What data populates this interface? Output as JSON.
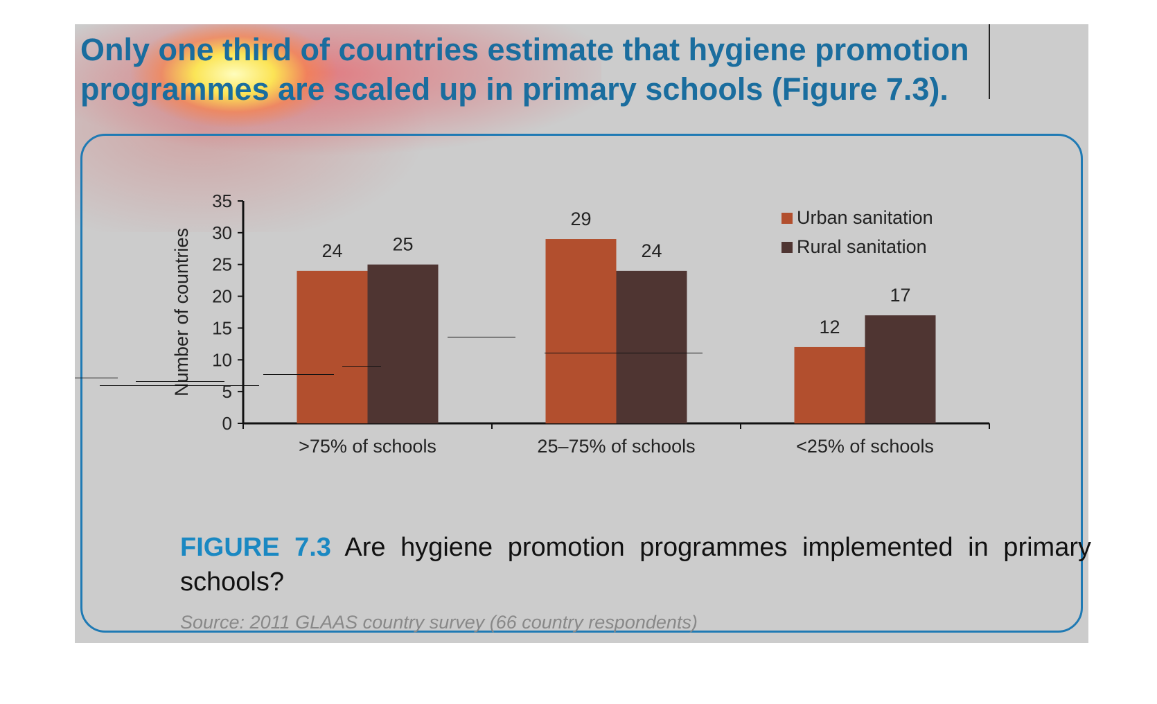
{
  "headline": "Only one third of countries estimate that hygiene promotion programmes are scaled up in primary schools (Figure 7.3).",
  "caption": {
    "figure_label": "FIGURE 7.3",
    "text": "Are hygiene promotion programmes implemented in primary schools?"
  },
  "source": "Source: 2011 GLAAS country survey (66 country respondents)",
  "colors": {
    "urban": "#b24f2e",
    "rural": "#4f3532",
    "accent": "#1a6d9e",
    "panel": "#cccccc"
  },
  "chart_data": {
    "type": "bar",
    "categories": [
      ">75% of schools",
      "25–75% of schools",
      "<25% of schools"
    ],
    "series": [
      {
        "name": "Urban sanitation",
        "values": [
          24,
          29,
          12
        ],
        "color": "#b24f2e"
      },
      {
        "name": "Rural sanitation",
        "values": [
          25,
          24,
          17
        ],
        "color": "#4f3532"
      }
    ],
    "ylabel": "Number of countries",
    "ylim": [
      0,
      35
    ],
    "yticks": [
      0,
      5,
      10,
      15,
      20,
      25,
      30,
      35
    ],
    "legend": "top-right",
    "grid": false,
    "data_labels": true
  }
}
